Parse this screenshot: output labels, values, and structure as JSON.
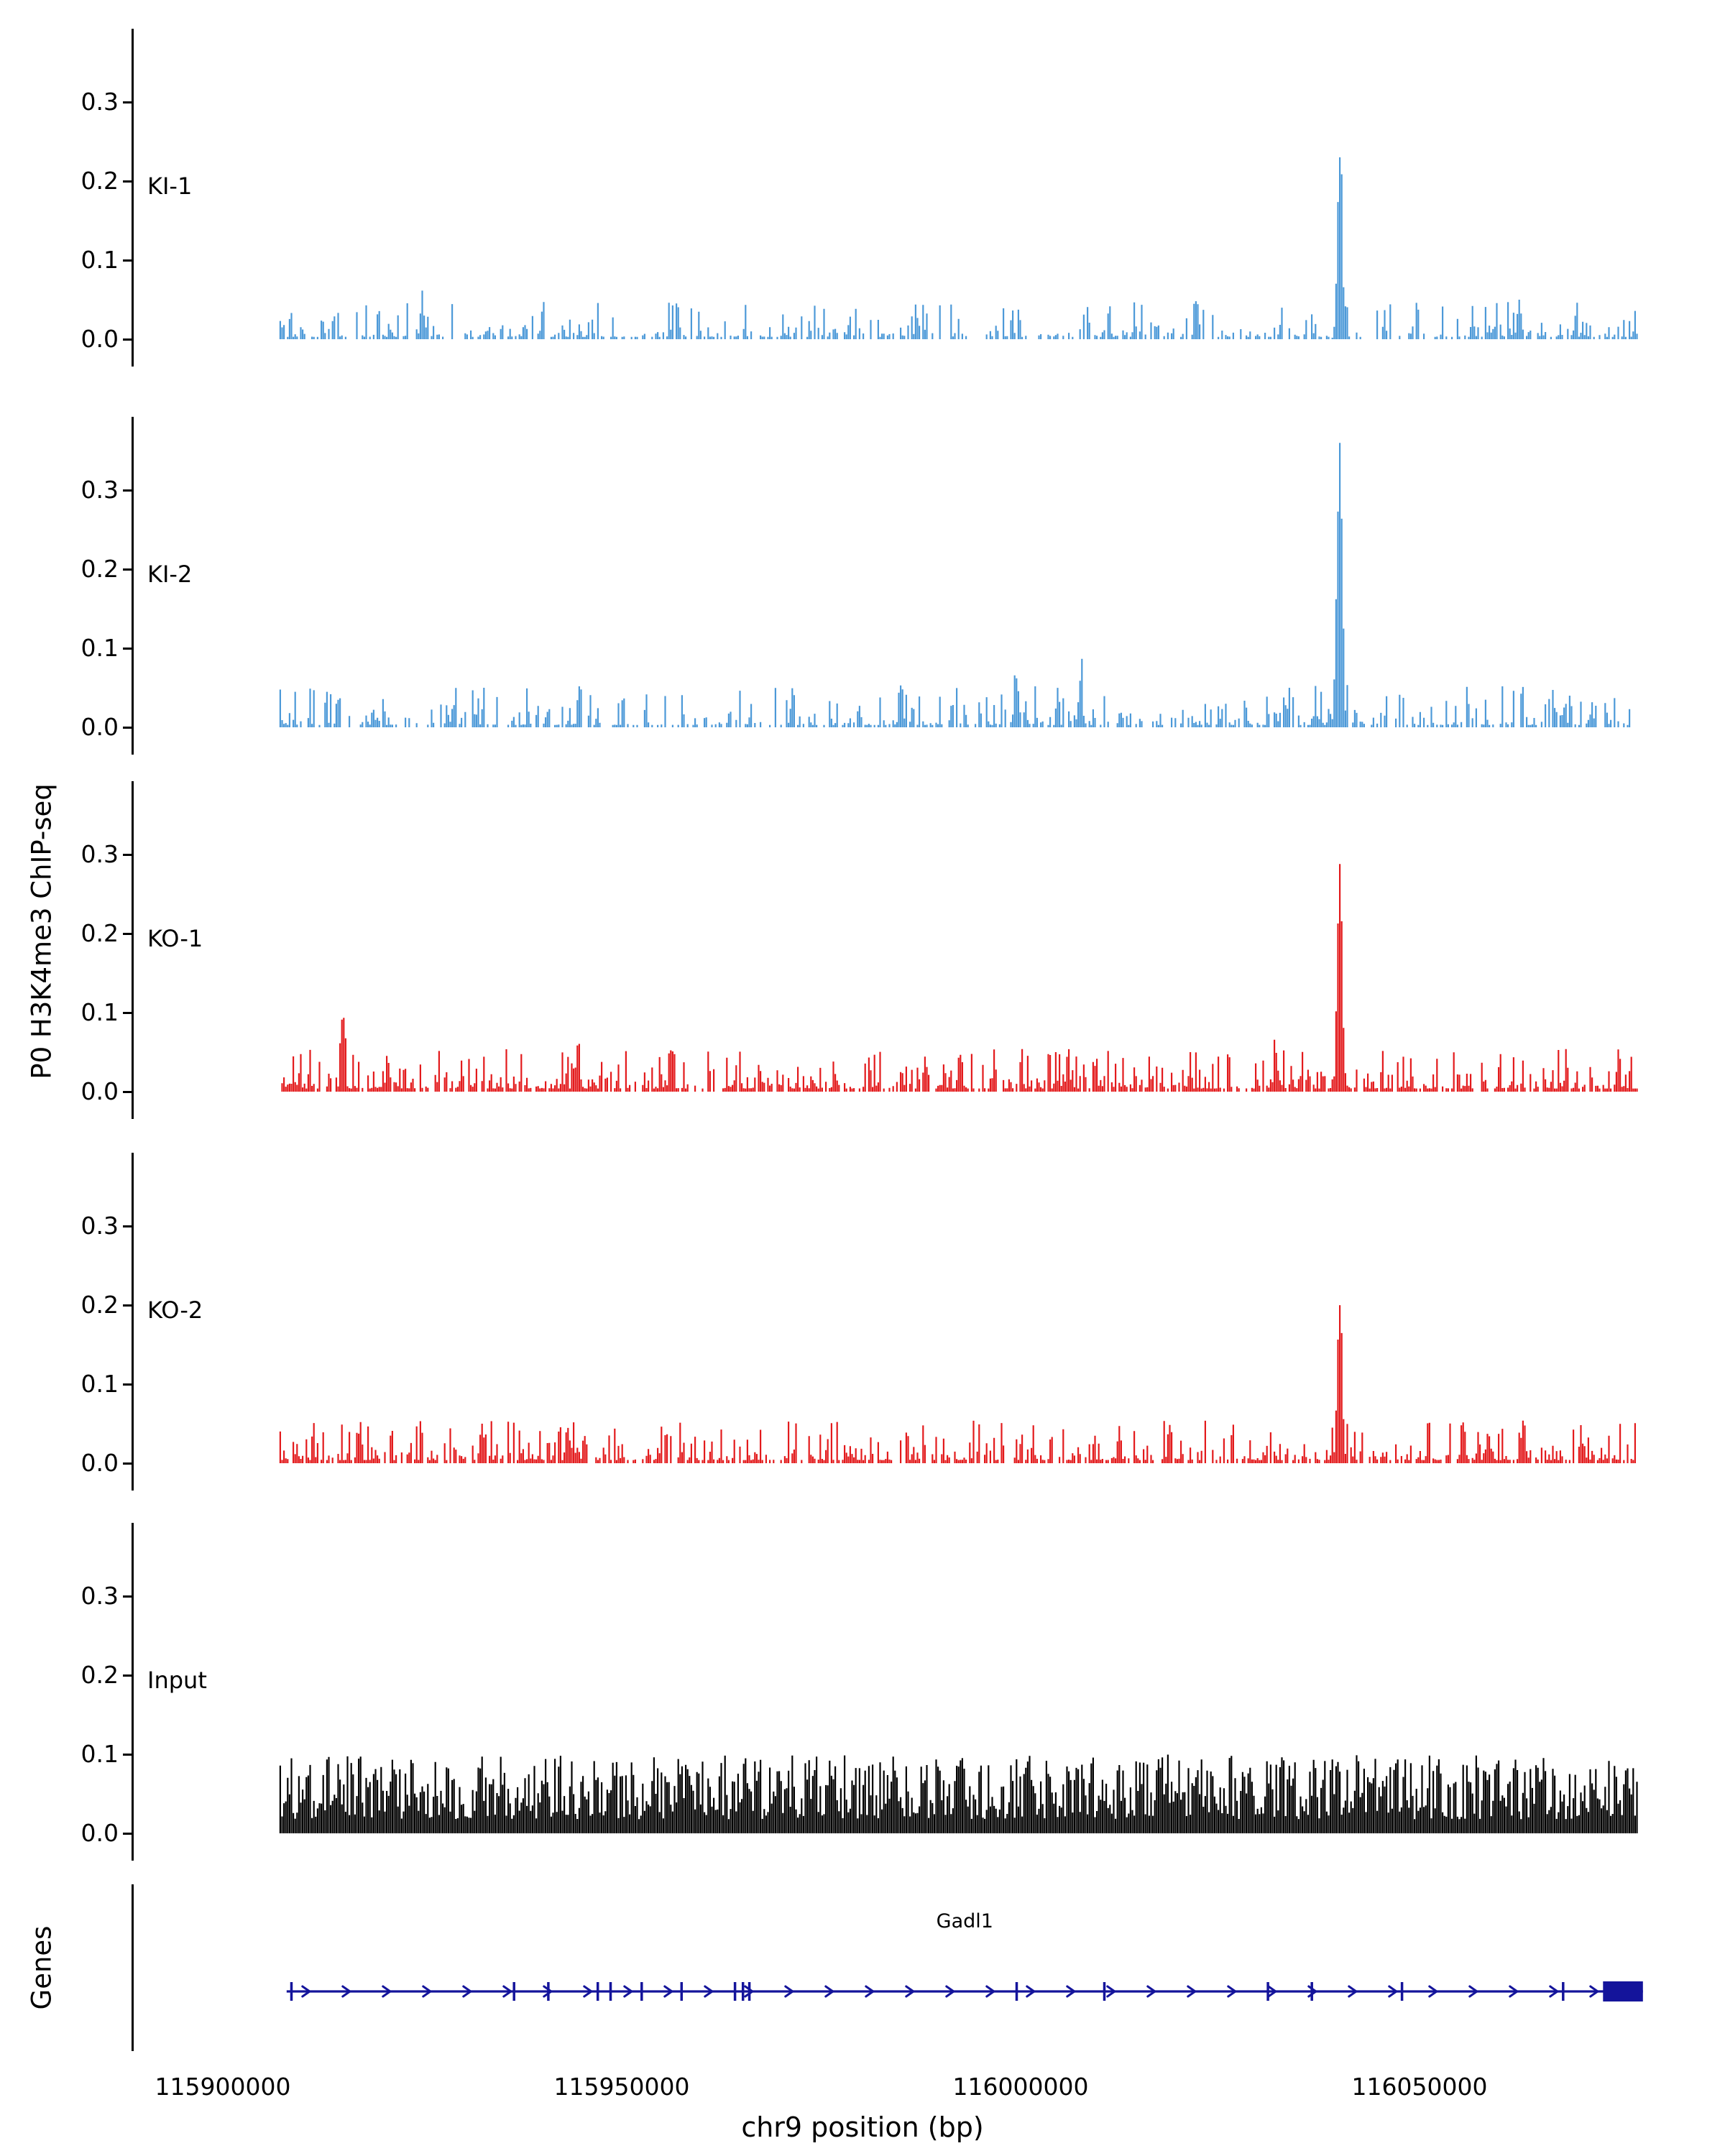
{
  "figure": {
    "ylabel": "P0 H3K4me3 ChIP-seq",
    "xlabel": "chr9 position (bp)",
    "genes_axis_label": "Genes"
  },
  "chart_data": {
    "type": "area",
    "title": "",
    "xlabel": "chr9 position (bp)",
    "ylabel": "P0 H3K4me3 ChIP-seq",
    "x_axis": {
      "ticks": [
        115900000,
        115950000,
        116000000,
        116050000
      ],
      "tick_labels": [
        "115900000",
        "115950000",
        "116000000",
        "116050000"
      ],
      "range_bp": [
        115889000,
        116082000
      ],
      "data_range_bp": [
        115907200,
        116077400
      ]
    },
    "y_axis": {
      "ticks": [
        0.0,
        0.1,
        0.2,
        0.3
      ],
      "tick_labels": [
        "0.0",
        "0.1",
        "0.2",
        "0.3"
      ],
      "ylim": [
        0,
        0.38
      ]
    },
    "tracks": [
      {
        "name": "KI-1",
        "color": "#4C99D8",
        "seed": 101,
        "noise": {
          "density": 0.55,
          "base": 0.003,
          "amp": 0.045,
          "power": 3
        },
        "peaks": [
          {
            "x": 116040000,
            "height": 0.225,
            "sigma": 300
          },
          {
            "x": 116062500,
            "height": 0.05,
            "sigma": 250
          },
          {
            "x": 115925000,
            "height": 0.042,
            "sigma": 250
          },
          {
            "x": 116022000,
            "height": 0.04,
            "sigma": 250
          }
        ]
      },
      {
        "name": "KI-2",
        "color": "#4C99D8",
        "seed": 202,
        "noise": {
          "density": 0.6,
          "base": 0.003,
          "amp": 0.05,
          "power": 3
        },
        "peaks": [
          {
            "x": 116040000,
            "height": 0.36,
            "sigma": 300
          },
          {
            "x": 115999500,
            "height": 0.062,
            "sigma": 250
          },
          {
            "x": 116007500,
            "height": 0.06,
            "sigma": 250
          },
          {
            "x": 115985000,
            "height": 0.05,
            "sigma": 250
          }
        ]
      },
      {
        "name": "KO-1",
        "color": "#E31A1C",
        "seed": 303,
        "noise": {
          "density": 0.78,
          "base": 0.004,
          "amp": 0.05,
          "power": 3
        },
        "peaks": [
          {
            "x": 116040000,
            "height": 0.275,
            "sigma": 300
          },
          {
            "x": 115915000,
            "height": 0.068,
            "sigma": 250
          },
          {
            "x": 115944500,
            "height": 0.06,
            "sigma": 250
          },
          {
            "x": 116032000,
            "height": 0.05,
            "sigma": 250
          }
        ]
      },
      {
        "name": "KO-2",
        "color": "#E31A1C",
        "seed": 404,
        "noise": {
          "density": 0.75,
          "base": 0.004,
          "amp": 0.05,
          "power": 3
        },
        "peaks": [
          {
            "x": 116040000,
            "height": 0.2,
            "sigma": 300
          },
          {
            "x": 115932500,
            "height": 0.05,
            "sigma": 250
          },
          {
            "x": 116055500,
            "height": 0.048,
            "sigma": 250
          },
          {
            "x": 116063000,
            "height": 0.05,
            "sigma": 250
          }
        ]
      },
      {
        "name": "Input",
        "color": "#000000",
        "seed": 505,
        "noise": {
          "density": 1.0,
          "base": 0.018,
          "amp": 0.082,
          "power": 1.4
        },
        "peaks": []
      }
    ],
    "gene_track": {
      "label": "Genes",
      "genes": [
        {
          "name": "Gadl1",
          "strand": "+",
          "color": "#14149B",
          "start": 115908000,
          "end": 116078000,
          "exon_ticks": [
            115908600,
            115936500,
            115940800,
            115947000,
            115948600,
            115952500,
            115957500,
            115964200,
            115965200,
            115966000,
            115999500,
            116010500,
            116031000,
            116036500,
            116047800,
            116068000
          ],
          "terminal_exon": {
            "start": 116073000,
            "end": 116078000
          }
        }
      ]
    }
  }
}
